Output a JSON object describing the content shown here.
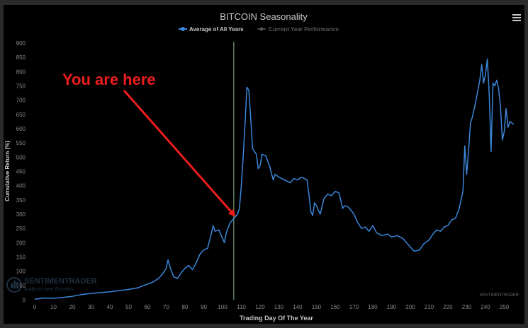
{
  "annotation": {
    "text": "You are here",
    "color": "#ee1c1c"
  },
  "watermark": {
    "brand": "SENTIMENTRADER",
    "tagline": "Analysis over Emotion",
    "credit": "SENTIMENTRADER"
  },
  "menu": {
    "icon": "hamburger-menu-icon"
  },
  "colors": {
    "series": "#3a86d9",
    "marker": "#8fbf8f",
    "axis_text": "#8a8a8a",
    "title_text": "#c8c8c8",
    "legend_inactive": "#555555"
  },
  "chart_data": {
    "type": "line",
    "title": "BITCOIN Seasonality",
    "xlabel": "Trading Day Of The Year",
    "ylabel": "Cumulative Return (%)",
    "xlim": [
      0,
      257
    ],
    "ylim": [
      0,
      900
    ],
    "x_ticks": [
      0,
      10,
      20,
      30,
      40,
      50,
      60,
      70,
      80,
      90,
      100,
      110,
      120,
      130,
      140,
      150,
      160,
      170,
      180,
      190,
      200,
      210,
      220,
      230,
      240,
      250
    ],
    "y_ticks": [
      0,
      50,
      100,
      150,
      200,
      250,
      300,
      350,
      400,
      450,
      500,
      550,
      600,
      650,
      700,
      750,
      800,
      850,
      900
    ],
    "grid": false,
    "legend_position": "top-center",
    "current_day_marker": 106,
    "series": [
      {
        "name": "Average of All Years",
        "legend_active": true,
        "points": [
          [
            0,
            2
          ],
          [
            5,
            6
          ],
          [
            10,
            5
          ],
          [
            15,
            8
          ],
          [
            20,
            12
          ],
          [
            25,
            18
          ],
          [
            30,
            22
          ],
          [
            35,
            25
          ],
          [
            40,
            28
          ],
          [
            45,
            32
          ],
          [
            50,
            36
          ],
          [
            55,
            42
          ],
          [
            60,
            55
          ],
          [
            63,
            62
          ],
          [
            66,
            75
          ],
          [
            68,
            90
          ],
          [
            70,
            110
          ],
          [
            71,
            140
          ],
          [
            72,
            115
          ],
          [
            74,
            80
          ],
          [
            76,
            75
          ],
          [
            78,
            95
          ],
          [
            80,
            110
          ],
          [
            82,
            120
          ],
          [
            84,
            105
          ],
          [
            86,
            130
          ],
          [
            88,
            160
          ],
          [
            90,
            175
          ],
          [
            92,
            180
          ],
          [
            94,
            230
          ],
          [
            95,
            260
          ],
          [
            96,
            240
          ],
          [
            98,
            245
          ],
          [
            100,
            215
          ],
          [
            101,
            200
          ],
          [
            102,
            235
          ],
          [
            104,
            270
          ],
          [
            106,
            285
          ],
          [
            108,
            300
          ],
          [
            109,
            320
          ],
          [
            110,
            400
          ],
          [
            111,
            500
          ],
          [
            112,
            620
          ],
          [
            113,
            745
          ],
          [
            114,
            735
          ],
          [
            115,
            640
          ],
          [
            116,
            530
          ],
          [
            118,
            510
          ],
          [
            119,
            460
          ],
          [
            120,
            470
          ],
          [
            121,
            510
          ],
          [
            123,
            505
          ],
          [
            125,
            470
          ],
          [
            127,
            420
          ],
          [
            128,
            440
          ],
          [
            130,
            430
          ],
          [
            133,
            420
          ],
          [
            136,
            410
          ],
          [
            138,
            425
          ],
          [
            140,
            420
          ],
          [
            142,
            430
          ],
          [
            145,
            420
          ],
          [
            146,
            370
          ],
          [
            147,
            310
          ],
          [
            148,
            295
          ],
          [
            149,
            340
          ],
          [
            150,
            330
          ],
          [
            152,
            300
          ],
          [
            154,
            355
          ],
          [
            156,
            370
          ],
          [
            158,
            365
          ],
          [
            160,
            380
          ],
          [
            162,
            375
          ],
          [
            164,
            320
          ],
          [
            165,
            330
          ],
          [
            167,
            325
          ],
          [
            170,
            300
          ],
          [
            172,
            270
          ],
          [
            174,
            250
          ],
          [
            176,
            255
          ],
          [
            178,
            240
          ],
          [
            180,
            260
          ],
          [
            182,
            235
          ],
          [
            185,
            225
          ],
          [
            188,
            230
          ],
          [
            190,
            220
          ],
          [
            193,
            225
          ],
          [
            196,
            215
          ],
          [
            198,
            200
          ],
          [
            200,
            185
          ],
          [
            202,
            170
          ],
          [
            205,
            175
          ],
          [
            207,
            195
          ],
          [
            210,
            210
          ],
          [
            212,
            230
          ],
          [
            214,
            245
          ],
          [
            216,
            240
          ],
          [
            218,
            255
          ],
          [
            220,
            260
          ],
          [
            222,
            280
          ],
          [
            224,
            285
          ],
          [
            226,
            320
          ],
          [
            228,
            380
          ],
          [
            229,
            540
          ],
          [
            230,
            440
          ],
          [
            231,
            520
          ],
          [
            232,
            620
          ],
          [
            233,
            640
          ],
          [
            235,
            700
          ],
          [
            237,
            770
          ],
          [
            238,
            825
          ],
          [
            239,
            760
          ],
          [
            240,
            790
          ],
          [
            241,
            845
          ],
          [
            242,
            720
          ],
          [
            243,
            520
          ],
          [
            244,
            760
          ],
          [
            245,
            750
          ],
          [
            246,
            770
          ],
          [
            247,
            740
          ],
          [
            248,
            675
          ],
          [
            249,
            560
          ],
          [
            250,
            590
          ],
          [
            251,
            670
          ],
          [
            252,
            605
          ],
          [
            253,
            625
          ],
          [
            255,
            615
          ]
        ]
      },
      {
        "name": "Current Year Performance",
        "legend_active": false,
        "points": []
      }
    ]
  }
}
